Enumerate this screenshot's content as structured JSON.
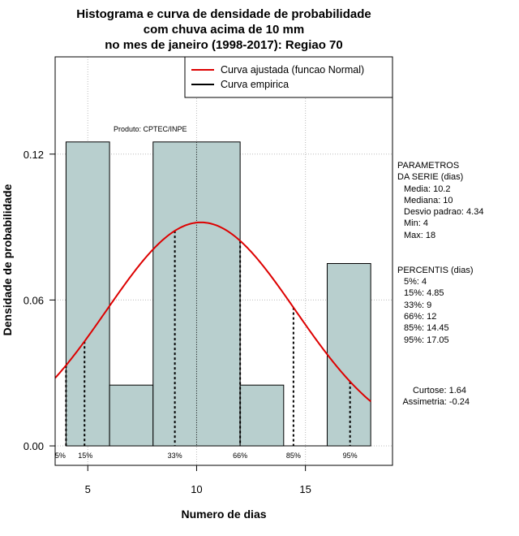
{
  "chart_data": {
    "type": "bar",
    "title_lines": [
      "Histograma e curva de densidade de probabilidade",
      "com chuva acima de 10 mm",
      "no mes de janeiro (1998-2017): Regiao 70"
    ],
    "xlabel": "Numero de dias",
    "ylabel": "Densidade de probabilidade",
    "xlim": [
      3.5,
      19
    ],
    "ylim": [
      -0.008,
      0.16
    ],
    "x_ticks": [
      5,
      10,
      15
    ],
    "y_ticks": [
      0.0,
      0.06,
      0.12
    ],
    "y_tick_labels": [
      "0.00",
      "0.06",
      "0.12"
    ],
    "grid": true,
    "bins": [
      {
        "from": 4,
        "to": 6,
        "value": 0.125
      },
      {
        "from": 6,
        "to": 8,
        "value": 0.025
      },
      {
        "from": 8,
        "to": 12,
        "value": 0.125
      },
      {
        "from": 12,
        "to": 14,
        "value": 0.025
      },
      {
        "from": 14,
        "to": 16,
        "value": 0.0
      },
      {
        "from": 16,
        "to": 18,
        "value": 0.075
      }
    ],
    "normal_curve": {
      "mean": 10.2,
      "sd": 4.34,
      "x_from": 3.5,
      "x_to": 18,
      "color": "#dd0000"
    },
    "median_line": 10,
    "percentiles": [
      {
        "label": "5%",
        "x": 4
      },
      {
        "label": "15%",
        "x": 4.85
      },
      {
        "label": "33%",
        "x": 9
      },
      {
        "label": "66%",
        "x": 12
      },
      {
        "label": "85%",
        "x": 14.45
      },
      {
        "label": "95%",
        "x": 17.05
      }
    ],
    "legend": {
      "position": "top-right",
      "items": [
        {
          "label": "Curva ajustada (funcao Normal)",
          "color": "#dd0000"
        },
        {
          "label": "Curva empirica",
          "color": "#000000"
        }
      ]
    },
    "credit": "Produto: CPTEC/INPE",
    "parameters_title": [
      "PARAMETROS",
      "DA SERIE (dias)"
    ],
    "parameters": [
      "Media: 10.2",
      "Mediana: 10",
      "Desvio padrao: 4.34",
      "Min: 4",
      "Max: 18"
    ],
    "percentis_title": "PERCENTIS (dias)",
    "percentis": [
      "5%: 4",
      "15%: 4.85",
      "33%: 9",
      "66%: 12",
      "85%: 14.45",
      "95%: 17.05"
    ],
    "shape_stats": [
      "Curtose: 1.64",
      "Assimetria: -0.24"
    ],
    "colors": {
      "bar_fill": "#b8cfce",
      "curve": "#dd0000",
      "grid": "#bbbbbb"
    }
  }
}
